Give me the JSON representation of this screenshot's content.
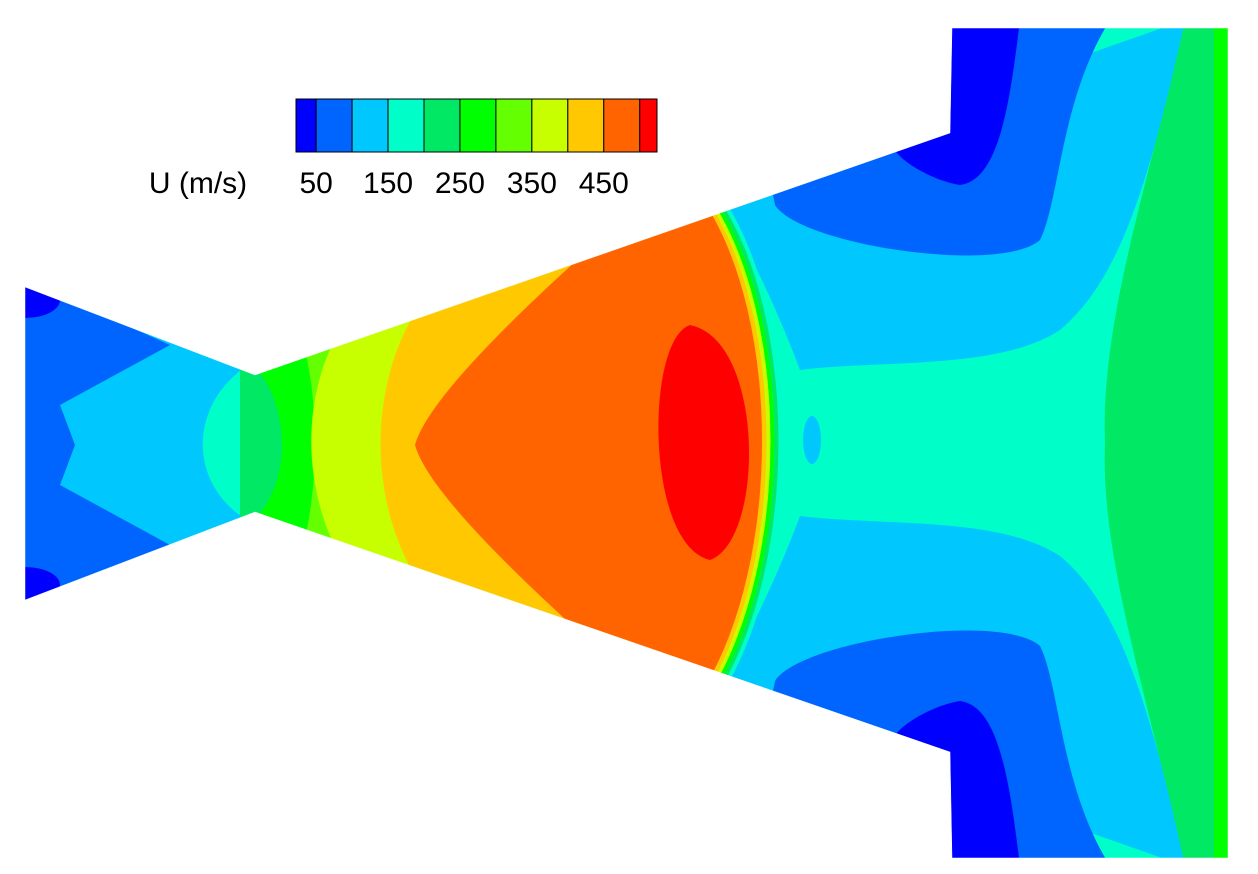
{
  "chart_data": {
    "type": "contour",
    "colorbar": {
      "label": "U (m/s)",
      "bins": [
        22,
        50,
        100,
        150,
        200,
        250,
        300,
        350,
        400,
        450,
        500,
        524
      ],
      "colors": [
        "#0000ff",
        "#0064ff",
        "#00c8ff",
        "#00ffc8",
        "#00e864",
        "#00ff00",
        "#64ff00",
        "#c8ff00",
        "#ffc800",
        "#ff6400",
        "#ff0000"
      ],
      "ticks": [
        50,
        150,
        250,
        350,
        450
      ]
    }
  }
}
